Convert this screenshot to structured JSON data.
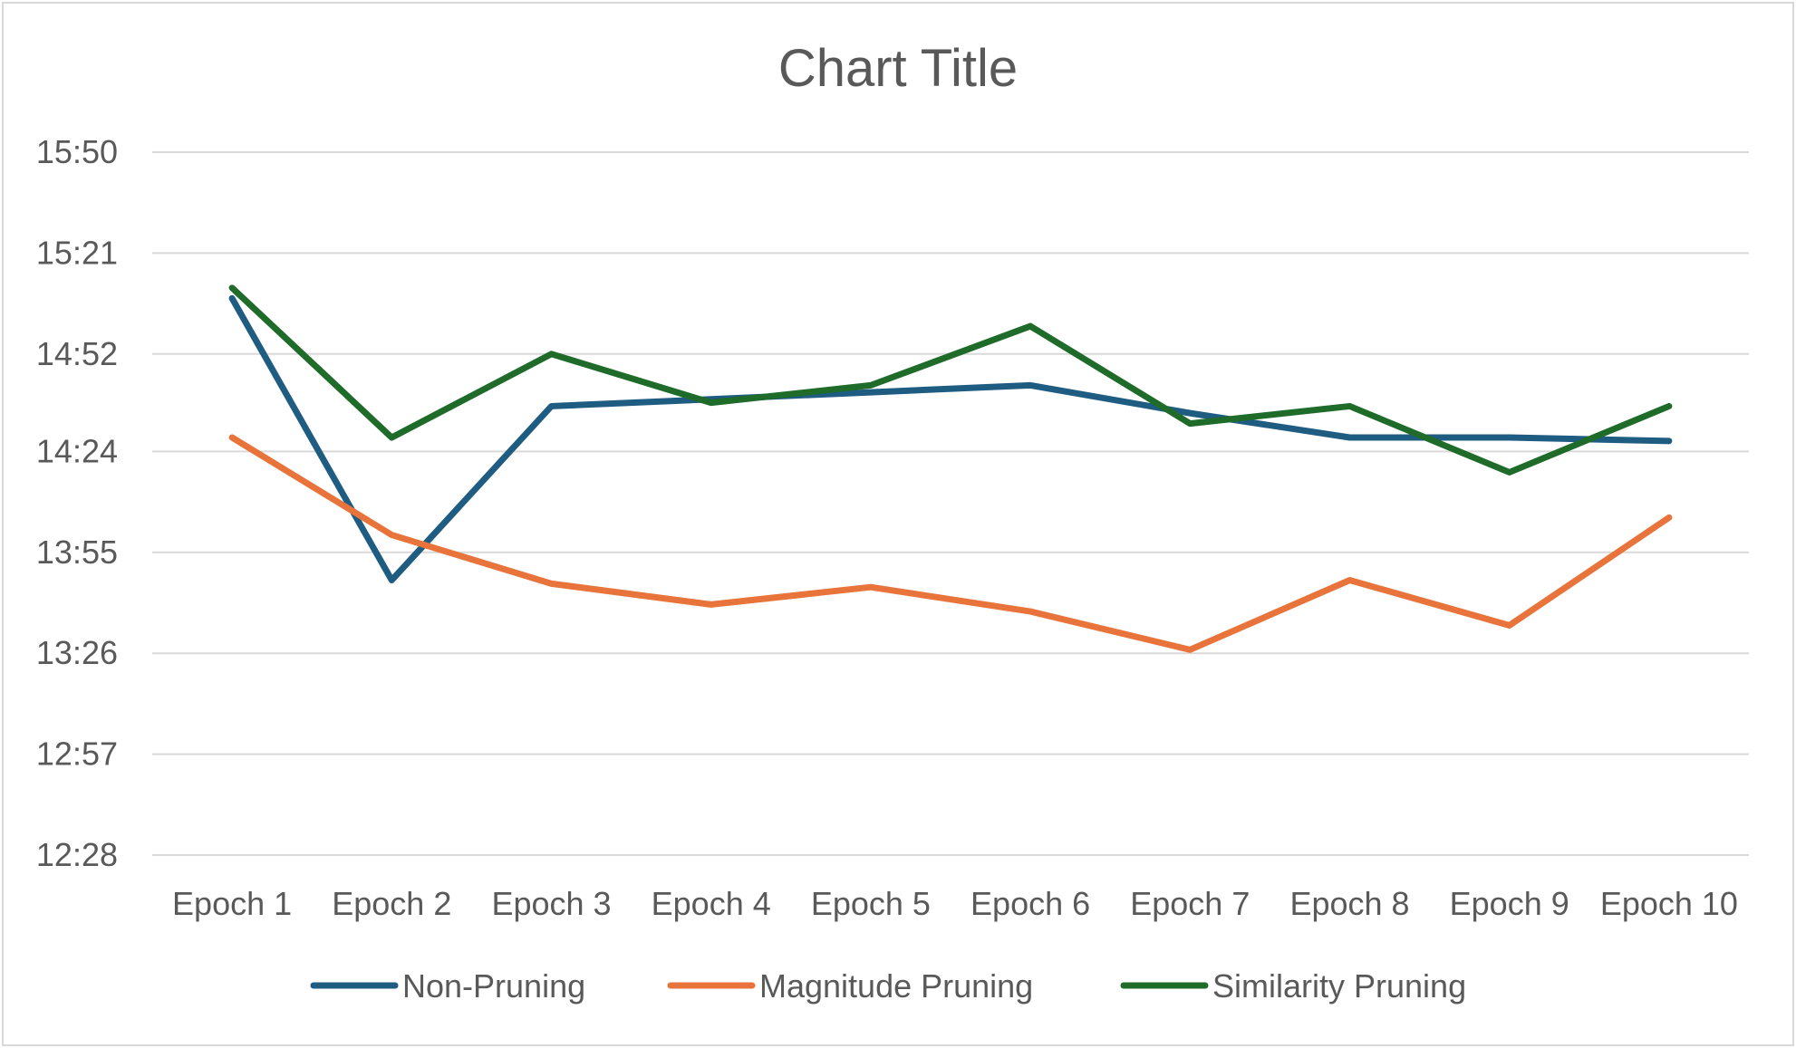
{
  "chart_data": {
    "type": "line",
    "title": "Chart Title",
    "xlabel": "",
    "ylabel": "",
    "categories": [
      "Epoch 1",
      "Epoch 2",
      "Epoch 3",
      "Epoch 4",
      "Epoch 5",
      "Epoch 6",
      "Epoch 7",
      "Epoch 8",
      "Epoch 9",
      "Epoch 10"
    ],
    "y_unit": "mm:ss",
    "y_ticks": [
      "12:28",
      "12:57",
      "13:26",
      "13:55",
      "14:24",
      "14:52",
      "15:21",
      "15:50"
    ],
    "ylim": [
      "12:28",
      "15:50"
    ],
    "grid": true,
    "legend_position": "bottom",
    "series": [
      {
        "name": "Non-Pruning",
        "color": "#1f5c82",
        "values": [
          "15:08",
          "13:47",
          "14:37",
          "14:39",
          "14:41",
          "14:43",
          "14:35",
          "14:28",
          "14:28",
          "14:27"
        ]
      },
      {
        "name": "Magnitude Pruning",
        "color": "#e8743b",
        "values": [
          "14:28",
          "14:00",
          "13:46",
          "13:40",
          "13:45",
          "13:38",
          "13:27",
          "13:47",
          "13:34",
          "14:05"
        ]
      },
      {
        "name": "Similarity Pruning",
        "color": "#1e6b2a",
        "values": [
          "15:11",
          "14:28",
          "14:52",
          "14:38",
          "14:43",
          "15:00",
          "14:32",
          "14:37",
          "14:18",
          "14:37"
        ]
      }
    ]
  }
}
